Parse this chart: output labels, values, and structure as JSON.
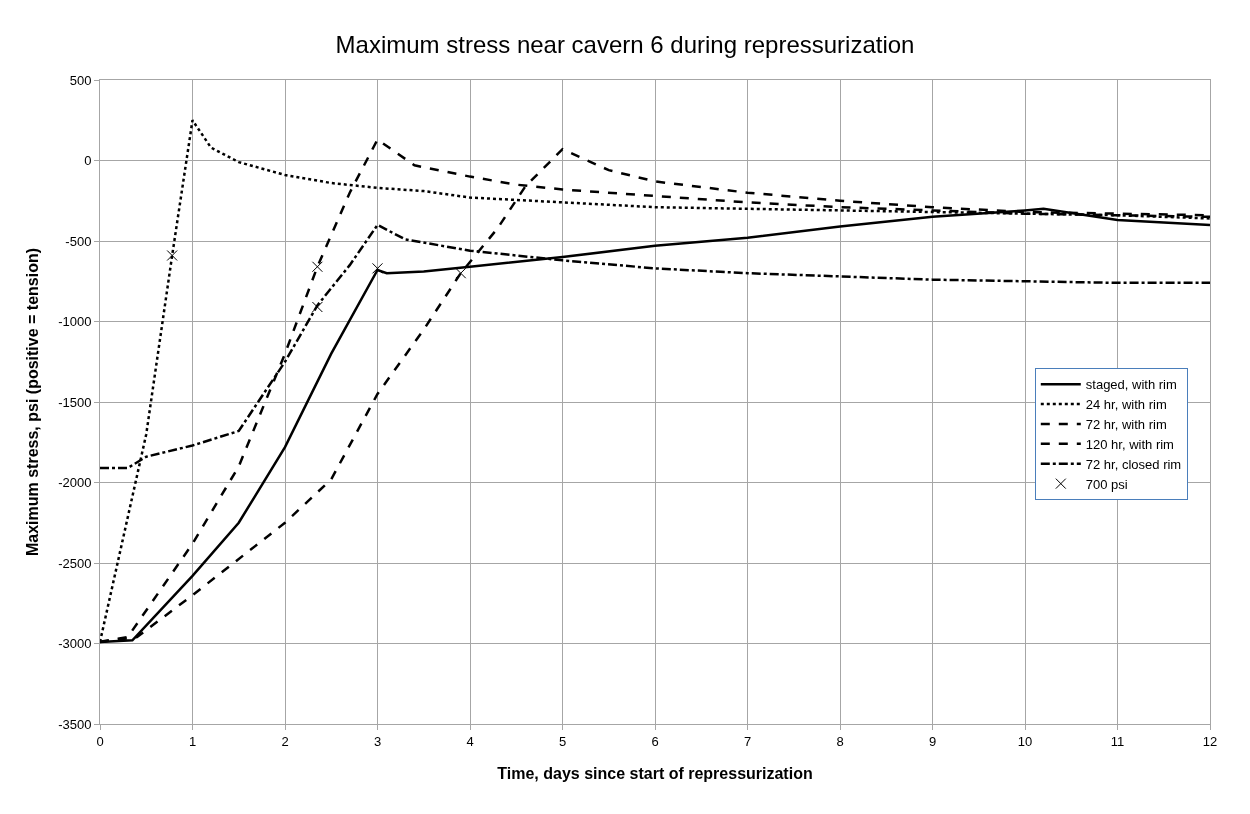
{
  "chart_data": {
    "type": "line",
    "title": "Maximum stress near cavern 6 during repressurization",
    "xlabel": "Time, days since start of repressurization",
    "ylabel": "Maximum stress, psi (positive = tension)",
    "xlim": [
      0,
      12
    ],
    "xticks": [
      0,
      1,
      2,
      3,
      4,
      5,
      6,
      7,
      8,
      9,
      10,
      11,
      12
    ],
    "ylim": [
      -3500,
      500
    ],
    "yticks": [
      -3500,
      -3000,
      -2500,
      -2000,
      -1500,
      -1000,
      -500,
      0,
      500
    ],
    "grid": true,
    "legend": "right",
    "marker": "none",
    "series": [
      {
        "name": "staged, with rim",
        "color": "#000000",
        "line_style": "solid",
        "x": [
          0,
          0.35,
          1,
          1.5,
          2,
          2.5,
          3,
          3.1,
          3.5,
          4,
          5,
          6,
          7,
          8,
          9,
          10,
          10.2,
          11,
          12
        ],
        "values": [
          -2990,
          -2980,
          -2580,
          -2250,
          -1780,
          -1200,
          -680,
          -700,
          -690,
          -660,
          -600,
          -530,
          -480,
          -410,
          -350,
          -310,
          -300,
          -370,
          -400
        ]
      },
      {
        "name": "24 hr, with rim",
        "color": "#000000",
        "line_style": "dotted",
        "x": [
          0,
          0.5,
          0.78,
          1,
          1.2,
          1.5,
          2,
          2.5,
          3,
          3.5,
          4,
          5,
          6,
          7,
          8,
          9,
          10,
          11,
          12
        ],
        "values": [
          -2990,
          -1700,
          -590,
          250,
          80,
          -10,
          -90,
          -140,
          -170,
          -190,
          -230,
          -260,
          -290,
          -300,
          -310,
          -320,
          -330,
          -340,
          -360
        ]
      },
      {
        "name": "72 hr, with rim",
        "color": "#000000",
        "line_style": "dashed",
        "x": [
          0,
          0.3,
          1,
          1.5,
          2,
          2.35,
          2.7,
          3,
          3.4,
          4,
          4.5,
          5,
          6,
          7,
          8,
          9,
          10,
          11,
          12
        ],
        "values": [
          -2990,
          -2960,
          -2380,
          -1900,
          -1200,
          -660,
          -200,
          130,
          -30,
          -100,
          -150,
          -180,
          -220,
          -260,
          -290,
          -310,
          -330,
          -340,
          -350
        ]
      },
      {
        "name": "120 hr, with rim",
        "color": "#000000",
        "line_style": "dashed",
        "x": [
          0,
          0.4,
          1,
          2,
          2.5,
          3,
          3.5,
          3.9,
          4.3,
          4.6,
          5,
          5.5,
          6,
          7,
          8,
          9,
          10,
          11,
          12
        ],
        "values": [
          -2990,
          -2960,
          -2700,
          -2250,
          -1980,
          -1450,
          -1050,
          -700,
          -420,
          -160,
          70,
          -60,
          -130,
          -200,
          -250,
          -290,
          -320,
          -330,
          -340
        ]
      },
      {
        "name": "72 hr, closed rim",
        "color": "#000000",
        "line_style": "dashdot",
        "x": [
          0,
          0.3,
          0.5,
          1,
          1.5,
          2,
          2.35,
          2.7,
          3,
          3.3,
          4,
          5,
          6,
          7,
          8,
          9,
          10,
          11,
          12
        ],
        "values": [
          -1910,
          -1910,
          -1840,
          -1770,
          -1680,
          -1250,
          -900,
          -650,
          -400,
          -490,
          -560,
          -620,
          -670,
          -700,
          -720,
          -740,
          -750,
          -760,
          -760
        ]
      },
      {
        "name": "700 psi",
        "type": "scatter",
        "color": "#000000",
        "marker": "cross",
        "x": [
          0.78,
          2.35,
          2.35,
          3,
          3.9
        ],
        "values": [
          -590,
          -660,
          -910,
          -670,
          -700
        ]
      }
    ]
  }
}
